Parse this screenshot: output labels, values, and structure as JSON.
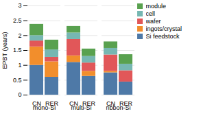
{
  "chart_data": {
    "type": "bar",
    "stacked": true,
    "categories": [
      "mono-Si",
      "multi-Si",
      "ribbon-Si"
    ],
    "subcategories": [
      "CN",
      "RER"
    ],
    "series": [
      {
        "name": "Si feedstock",
        "values": [
          [
            1.0,
            0.6
          ],
          [
            1.1,
            0.63
          ],
          [
            0.75,
            0.44
          ]
        ]
      },
      {
        "name": "ingots/crystal",
        "values": [
          [
            0.62,
            0.52
          ],
          [
            0.22,
            0.17
          ],
          [
            0.05,
            0.0
          ]
        ]
      },
      {
        "name": "wafer",
        "values": [
          [
            0.2,
            0.15
          ],
          [
            0.55,
            0.28
          ],
          [
            0.55,
            0.38
          ]
        ]
      },
      {
        "name": "cell",
        "values": [
          [
            0.18,
            0.25
          ],
          [
            0.22,
            0.22
          ],
          [
            0.22,
            0.22
          ]
        ]
      },
      {
        "name": "module",
        "values": [
          [
            0.38,
            0.33
          ],
          [
            0.22,
            0.25
          ],
          [
            0.22,
            0.32
          ]
        ]
      }
    ],
    "ylabel": "EPBT (years)",
    "ylim": [
      0,
      3.0
    ],
    "yticks": [
      0,
      0.5,
      1,
      1.5,
      2,
      2.5,
      3
    ],
    "grid": true,
    "legend": "upper right"
  }
}
